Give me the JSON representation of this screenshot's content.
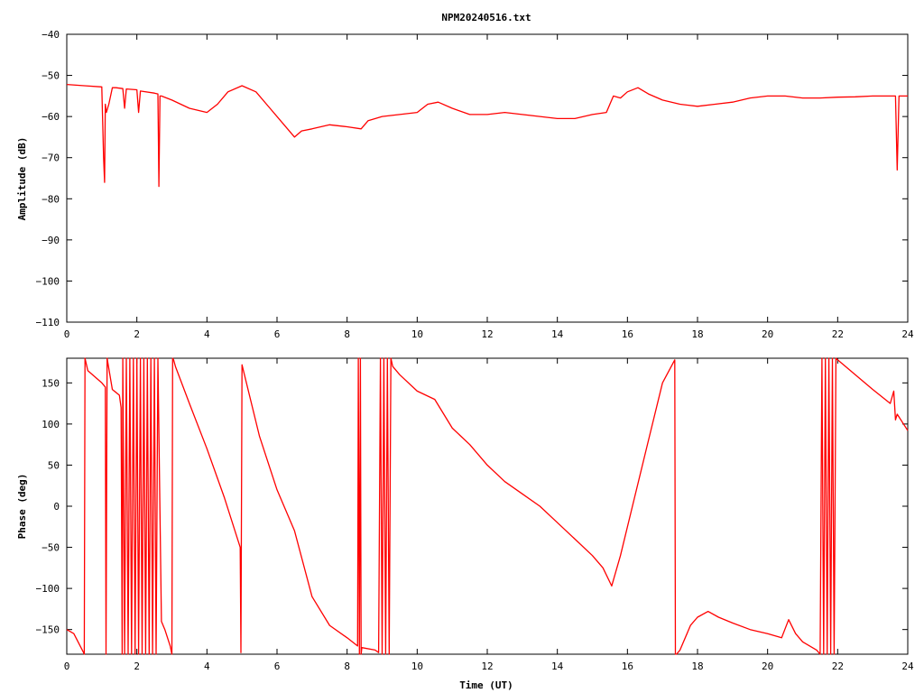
{
  "chart_data": [
    {
      "type": "line",
      "title": "NPM20240516.txt",
      "xlabel": "",
      "ylabel": "Amplitude (dB)",
      "xlim": [
        0,
        24
      ],
      "ylim": [
        -110,
        -40
      ],
      "xticks": [
        0,
        2,
        4,
        6,
        8,
        10,
        12,
        14,
        16,
        18,
        20,
        22,
        24
      ],
      "yticks": [
        -40,
        -50,
        -60,
        -70,
        -80,
        -90,
        -100,
        -110
      ],
      "x_tick_labels": [
        "0",
        "2",
        "4",
        "6",
        "8",
        "10",
        "12",
        "14",
        "16",
        "18",
        "20",
        "22",
        "24"
      ],
      "y_tick_labels": [
        "−40",
        "−50",
        "−60",
        "−70",
        "−80",
        "−90",
        "−100",
        "−110"
      ],
      "color": "#ff0000",
      "series": [
        {
          "x": [
            0,
            0.5,
            1.0,
            1.05,
            1.08,
            1.1,
            1.13,
            1.2,
            1.3,
            1.4,
            1.6,
            1.65,
            1.7,
            2.0,
            2.05,
            2.1,
            2.5,
            2.6,
            2.63,
            2.66,
            2.7,
            3.0,
            3.5,
            4.0,
            4.3,
            4.6,
            5.0,
            5.4,
            5.8,
            6.2,
            6.5,
            6.7,
            7.0,
            7.5,
            8.0,
            8.4,
            8.6,
            9.0,
            9.5,
            10.0,
            10.3,
            10.6,
            11.0,
            11.5,
            12.0,
            12.5,
            13.0,
            13.5,
            14.0,
            14.5,
            15.0,
            15.4,
            15.6,
            15.8,
            16.0,
            16.3,
            16.6,
            17.0,
            17.5,
            18.0,
            18.5,
            19.0,
            19.5,
            20.0,
            20.5,
            21.0,
            21.5,
            22.0,
            22.5,
            23.0,
            23.5,
            23.65,
            23.7,
            23.75,
            24.0
          ],
          "y": [
            -52.2,
            -52.5,
            -52.8,
            -70,
            -76,
            -57,
            -59,
            -57,
            -53,
            -53,
            -53.2,
            -58,
            -53.3,
            -53.5,
            -59,
            -53.8,
            -54.3,
            -54.5,
            -77,
            -55,
            -55,
            -56,
            -58,
            -59,
            -57,
            -54,
            -52.5,
            -54,
            -58,
            -62,
            -65,
            -63.5,
            -63,
            -62,
            -62.5,
            -63,
            -61,
            -60,
            -59.5,
            -59,
            -57,
            -56.5,
            -58,
            -59.5,
            -59.5,
            -59,
            -59.5,
            -60,
            -60.5,
            -60.5,
            -59.5,
            -59,
            -55,
            -55.5,
            -54,
            -53,
            -54.5,
            -56,
            -57,
            -57.5,
            -57,
            -56.5,
            -55.5,
            -55,
            -55,
            -55.5,
            -55.5,
            -55.3,
            -55.2,
            -55,
            -55,
            -55,
            -73,
            -55,
            -55
          ]
        }
      ]
    },
    {
      "type": "line",
      "title": "",
      "xlabel": "Time (UT)",
      "ylabel": "Phase (deg)",
      "xlim": [
        0,
        24
      ],
      "ylim": [
        -180,
        180
      ],
      "xticks": [
        0,
        2,
        4,
        6,
        8,
        10,
        12,
        14,
        16,
        18,
        20,
        22,
        24
      ],
      "yticks": [
        150,
        100,
        50,
        0,
        -50,
        -100,
        -150
      ],
      "x_tick_labels": [
        "0",
        "2",
        "4",
        "6",
        "8",
        "10",
        "12",
        "14",
        "16",
        "18",
        "20",
        "22",
        "24"
      ],
      "y_tick_labels": [
        "150",
        "100",
        "50",
        "0",
        "−50",
        "−100",
        "−150"
      ],
      "color": "#ff0000",
      "series": [
        {
          "x": [
            0,
            0.2,
            0.48,
            0.5,
            0.52,
            0.6,
            1.0,
            1.1,
            1.12,
            1.15,
            1.3,
            1.5,
            1.55,
            1.58,
            1.6,
            1.65,
            1.7,
            1.75,
            1.8,
            1.85,
            1.9,
            1.95,
            2.0,
            2.05,
            2.1,
            2.15,
            2.2,
            2.25,
            2.3,
            2.35,
            2.4,
            2.45,
            2.5,
            2.55,
            2.6,
            2.7,
            2.8,
            2.95,
            3.0,
            3.02,
            3.05,
            3.1,
            3.5,
            4.0,
            4.5,
            4.95,
            4.97,
            5.0,
            5.5,
            6.0,
            6.5,
            7.0,
            7.5,
            8.0,
            8.3,
            8.32,
            8.35,
            8.38,
            8.4,
            8.42,
            8.8,
            8.9,
            8.95,
            9.0,
            9.05,
            9.1,
            9.15,
            9.2,
            9.25,
            9.3,
            9.5,
            10.0,
            10.5,
            11.0,
            11.5,
            12.0,
            12.5,
            13.0,
            13.5,
            14.0,
            14.5,
            15.0,
            15.3,
            15.55,
            15.8,
            16.2,
            16.6,
            17.0,
            17.35,
            17.37,
            17.4,
            17.5,
            17.8,
            18.0,
            18.3,
            18.6,
            19.0,
            19.5,
            20.0,
            20.4,
            20.6,
            20.8,
            21.0,
            21.4,
            21.5,
            21.55,
            21.6,
            21.65,
            21.7,
            21.75,
            21.8,
            21.85,
            21.9,
            21.95,
            22.0,
            22.5,
            23.0,
            23.5,
            23.6,
            23.65,
            23.7,
            24.0
          ],
          "y": [
            -150,
            -155,
            -178,
            -180,
            180,
            165,
            150,
            145,
            -180,
            180,
            142,
            135,
            120,
            -180,
            180,
            -180,
            180,
            -180,
            180,
            -180,
            180,
            -180,
            180,
            -180,
            180,
            -180,
            180,
            -180,
            180,
            -180,
            180,
            -180,
            180,
            -180,
            180,
            -140,
            -150,
            -170,
            -180,
            180,
            178,
            170,
            125,
            70,
            10,
            -50,
            -178,
            172,
            85,
            20,
            -30,
            -110,
            -145,
            -160,
            -170,
            180,
            -180,
            180,
            -180,
            -172,
            -175,
            -178,
            180,
            -180,
            180,
            -180,
            180,
            -180,
            180,
            170,
            160,
            140,
            130,
            95,
            75,
            50,
            30,
            15,
            0,
            -20,
            -40,
            -60,
            -75,
            -97,
            -60,
            10,
            80,
            150,
            178,
            -180,
            -180,
            -175,
            -145,
            -135,
            -128,
            -135,
            -142,
            -150,
            -155,
            -160,
            -138,
            -155,
            -165,
            -175,
            -180,
            180,
            -180,
            180,
            -180,
            180,
            -180,
            180,
            -180,
            180,
            178,
            160,
            142,
            125,
            140,
            105,
            112,
            92
          ]
        }
      ]
    }
  ]
}
